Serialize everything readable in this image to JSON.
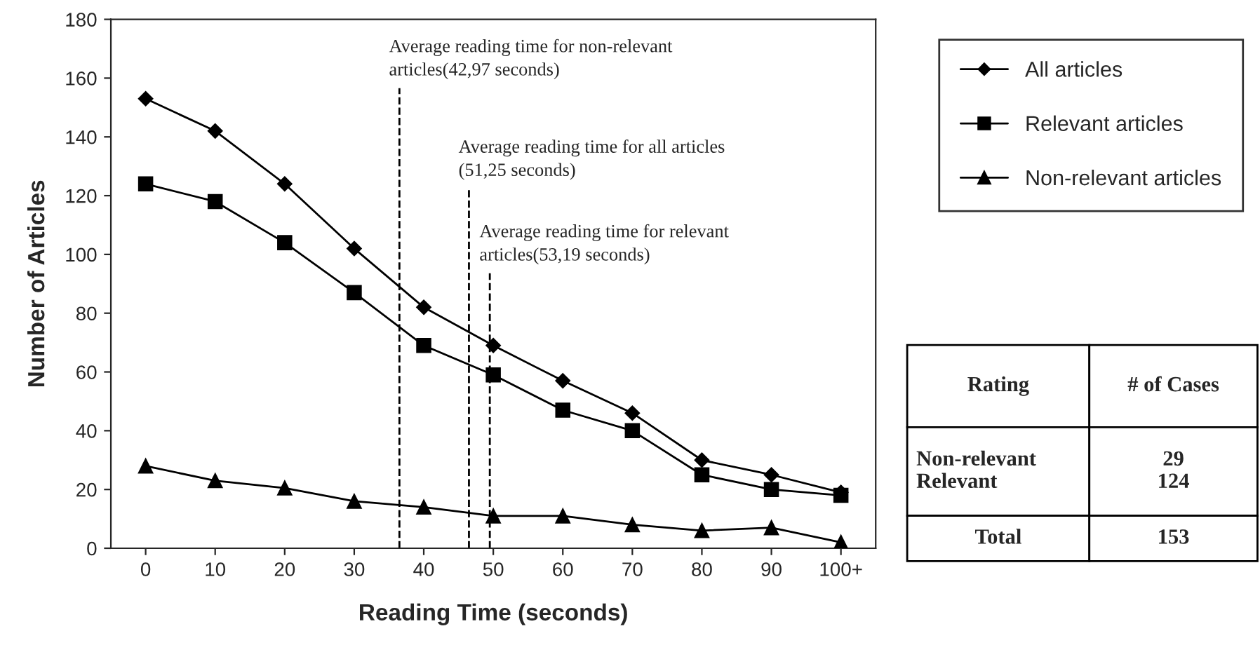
{
  "chart_data": {
    "type": "line",
    "xlabel": "Reading Time (seconds)",
    "ylabel": "Number of Articles",
    "x": [
      0,
      10,
      20,
      30,
      40,
      50,
      60,
      70,
      80,
      90,
      100
    ],
    "xlim": [
      -5,
      105
    ],
    "xticks": [
      0,
      10,
      20,
      30,
      40,
      50,
      60,
      70,
      80,
      90,
      {
        "value": 100,
        "label": "100+"
      }
    ],
    "ylim": [
      0,
      180
    ],
    "yticks": [
      0,
      20,
      40,
      60,
      80,
      100,
      120,
      140,
      160,
      180
    ],
    "grid": false,
    "legend": "top right",
    "line_style": "solid",
    "series": [
      {
        "name": "All articles",
        "color": "#000000",
        "marker": "diamond",
        "values": [
          153,
          142,
          124,
          102,
          82,
          69,
          57,
          46,
          30,
          25,
          19
        ]
      },
      {
        "name": "Relevant articles",
        "color": "#000000",
        "marker": "square",
        "values": [
          124,
          118,
          104,
          87,
          69,
          59,
          47,
          40,
          25,
          20,
          18
        ]
      },
      {
        "name": "Non-relevant articles",
        "color": "#000000",
        "marker": "triangle",
        "values": [
          28,
          23,
          20.5,
          16,
          14,
          11,
          11,
          8,
          6,
          7,
          2
        ]
      }
    ],
    "ref_lines": [
      {
        "axis": "x",
        "value": 36.5,
        "label": "Average reading time for non-relevant\narticles(42,97 seconds)",
        "color": "#000000",
        "line_style": "dashed"
      },
      {
        "axis": "x",
        "value": 46.5,
        "label": "Average reading time for all articles\n(51,25 seconds)",
        "color": "#000000",
        "line_style": "dashed"
      },
      {
        "axis": "x",
        "value": 49.5,
        "label": "Average reading time for relevant\narticles(53,19 seconds)",
        "color": "#000000",
        "line_style": "dashed"
      }
    ],
    "annotations": [
      "Rating",
      "# of Cases",
      "Non-relevant",
      "29",
      "Relevant",
      "124",
      "Total",
      "153"
    ]
  }
}
